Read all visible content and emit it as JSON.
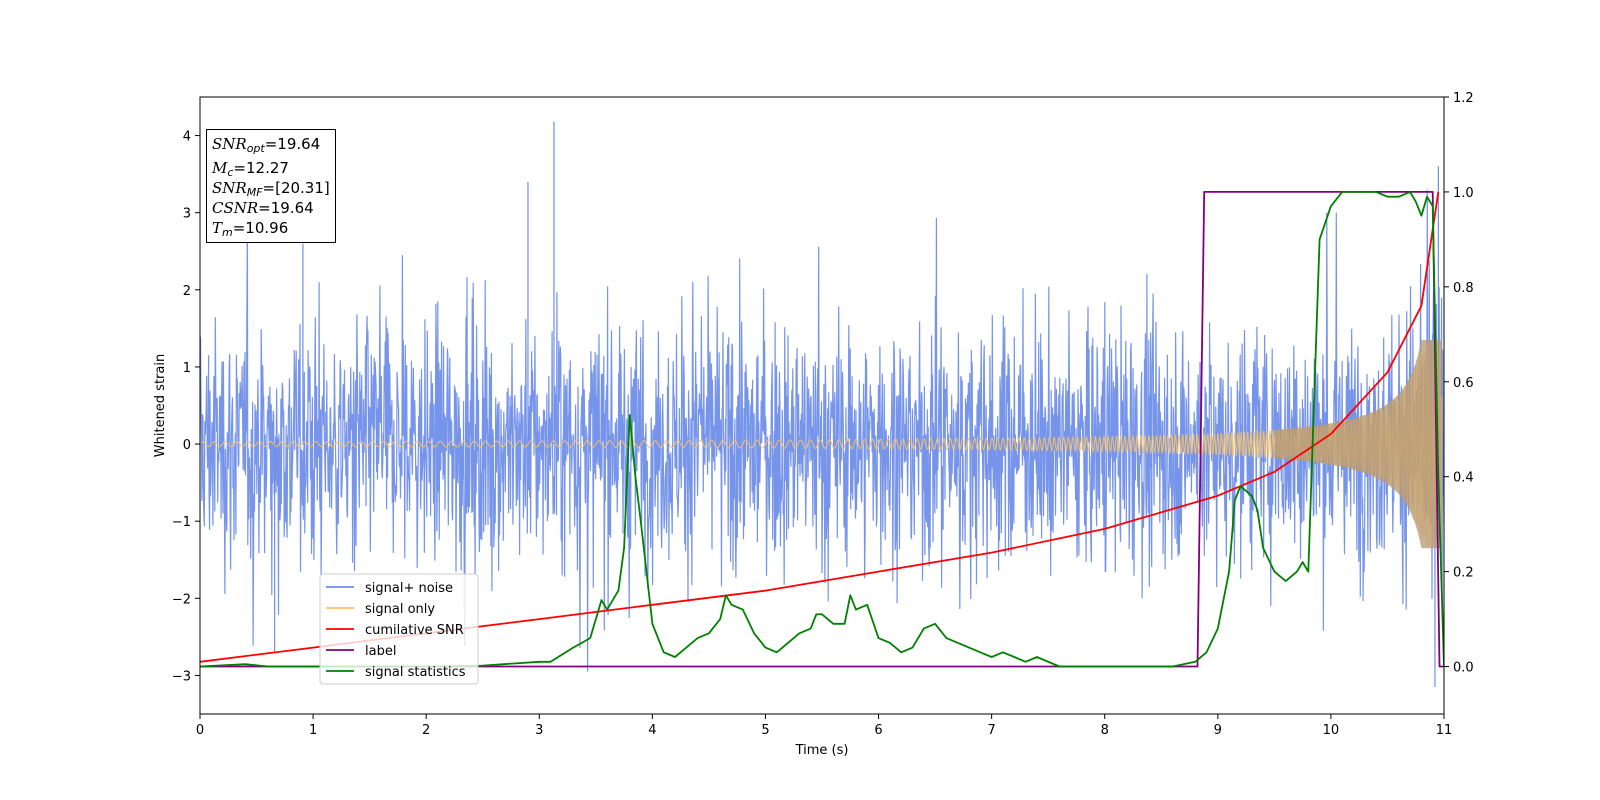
{
  "chart_data": {
    "type": "line",
    "xlabel": "Time (s)",
    "ylabel": "Whitened strain",
    "xlim": [
      0,
      11
    ],
    "ylim_left": [
      -3.5,
      4.5
    ],
    "ylim_right": [
      -0.1,
      1.2
    ],
    "x_ticks": [
      "0",
      "1",
      "2",
      "3",
      "4",
      "5",
      "6",
      "7",
      "8",
      "9",
      "10",
      "11"
    ],
    "y_ticks_left": [
      "−3",
      "−2",
      "−1",
      "0",
      "1",
      "2",
      "3",
      "4"
    ],
    "y_ticks_right": [
      "0.0",
      "0.2",
      "0.4",
      "0.6",
      "0.8",
      "1.0",
      "1.2"
    ],
    "legend_position": "lower-left",
    "series": [
      {
        "name": "signal+ noise",
        "axis": "left",
        "color": "#6f8ee8",
        "description": "noisy whitened strain, amplitude approx ±2.5 with spikes up to 4.2"
      },
      {
        "name": "signal only",
        "axis": "left",
        "color": "#f5c16a",
        "description": "chirp, amplitude ~0.03 at t=0 growing to ~1.3 near t=10.95"
      },
      {
        "name": "cumilative SNR",
        "axis": "right",
        "color": "#ff0000",
        "x": [
          0,
          1,
          2,
          3,
          4,
          5,
          6,
          7,
          8,
          9,
          9.5,
          10,
          10.5,
          10.8,
          10.95
        ],
        "y": [
          0.01,
          0.04,
          0.07,
          0.1,
          0.13,
          0.16,
          0.2,
          0.24,
          0.29,
          0.36,
          0.41,
          0.49,
          0.62,
          0.76,
          1.0
        ]
      },
      {
        "name": "label",
        "axis": "right",
        "color": "#800080",
        "x": [
          0,
          8.82,
          8.88,
          10.9,
          10.96,
          11.0
        ],
        "y": [
          0,
          0,
          1,
          1,
          0,
          0
        ]
      },
      {
        "name": "signal statistics",
        "axis": "right",
        "color": "#008000",
        "x": [
          0,
          0.4,
          0.6,
          1,
          2,
          2.5,
          3,
          3.1,
          3.3,
          3.45,
          3.55,
          3.6,
          3.7,
          3.75,
          3.8,
          3.85,
          3.9,
          4.0,
          4.1,
          4.2,
          4.3,
          4.4,
          4.5,
          4.6,
          4.65,
          4.7,
          4.8,
          4.9,
          5.0,
          5.1,
          5.2,
          5.3,
          5.4,
          5.45,
          5.5,
          5.6,
          5.7,
          5.75,
          5.8,
          5.9,
          6.0,
          6.1,
          6.2,
          6.3,
          6.4,
          6.5,
          6.6,
          6.7,
          6.8,
          6.9,
          7.0,
          7.1,
          7.2,
          7.3,
          7.4,
          7.6,
          7.8,
          8.0,
          8.3,
          8.6,
          8.8,
          8.9,
          9.0,
          9.1,
          9.15,
          9.2,
          9.3,
          9.35,
          9.4,
          9.5,
          9.6,
          9.7,
          9.75,
          9.8,
          9.85,
          9.9,
          10.0,
          10.1,
          10.2,
          10.3,
          10.4,
          10.5,
          10.6,
          10.7,
          10.75,
          10.8,
          10.85,
          10.9,
          10.95,
          11.0
        ],
        "y": [
          0.0,
          0.005,
          0.0,
          0.0,
          0.0,
          0.002,
          0.01,
          0.01,
          0.04,
          0.06,
          0.14,
          0.12,
          0.16,
          0.25,
          0.53,
          0.4,
          0.3,
          0.09,
          0.03,
          0.02,
          0.04,
          0.06,
          0.07,
          0.1,
          0.15,
          0.13,
          0.12,
          0.07,
          0.04,
          0.03,
          0.05,
          0.07,
          0.08,
          0.11,
          0.11,
          0.09,
          0.09,
          0.15,
          0.12,
          0.13,
          0.06,
          0.05,
          0.03,
          0.04,
          0.08,
          0.09,
          0.06,
          0.05,
          0.04,
          0.03,
          0.02,
          0.03,
          0.02,
          0.01,
          0.02,
          0.0,
          0.0,
          0.0,
          0.0,
          0.0,
          0.01,
          0.03,
          0.08,
          0.2,
          0.35,
          0.38,
          0.36,
          0.33,
          0.25,
          0.2,
          0.18,
          0.2,
          0.22,
          0.2,
          0.55,
          0.9,
          0.97,
          1.0,
          1.0,
          1.0,
          1.0,
          0.99,
          0.99,
          1.0,
          0.98,
          0.95,
          0.99,
          0.97,
          0.4,
          0.0
        ]
      }
    ]
  },
  "info_box": {
    "snr_opt_sym": "SNR",
    "snr_opt_sub": "opt",
    "snr_opt_val": "=19.64",
    "mc_sym": "M",
    "mc_sub": "c",
    "mc_val": "=12.27",
    "snr_mf_sym": "SNR",
    "snr_mf_sub": "MF",
    "snr_mf_val": "=[20.31]",
    "csnr_sym": "CSNR",
    "csnr_val": "=19.64",
    "tm_sym": "T",
    "tm_sub": "m",
    "tm_val": "=10.96"
  }
}
